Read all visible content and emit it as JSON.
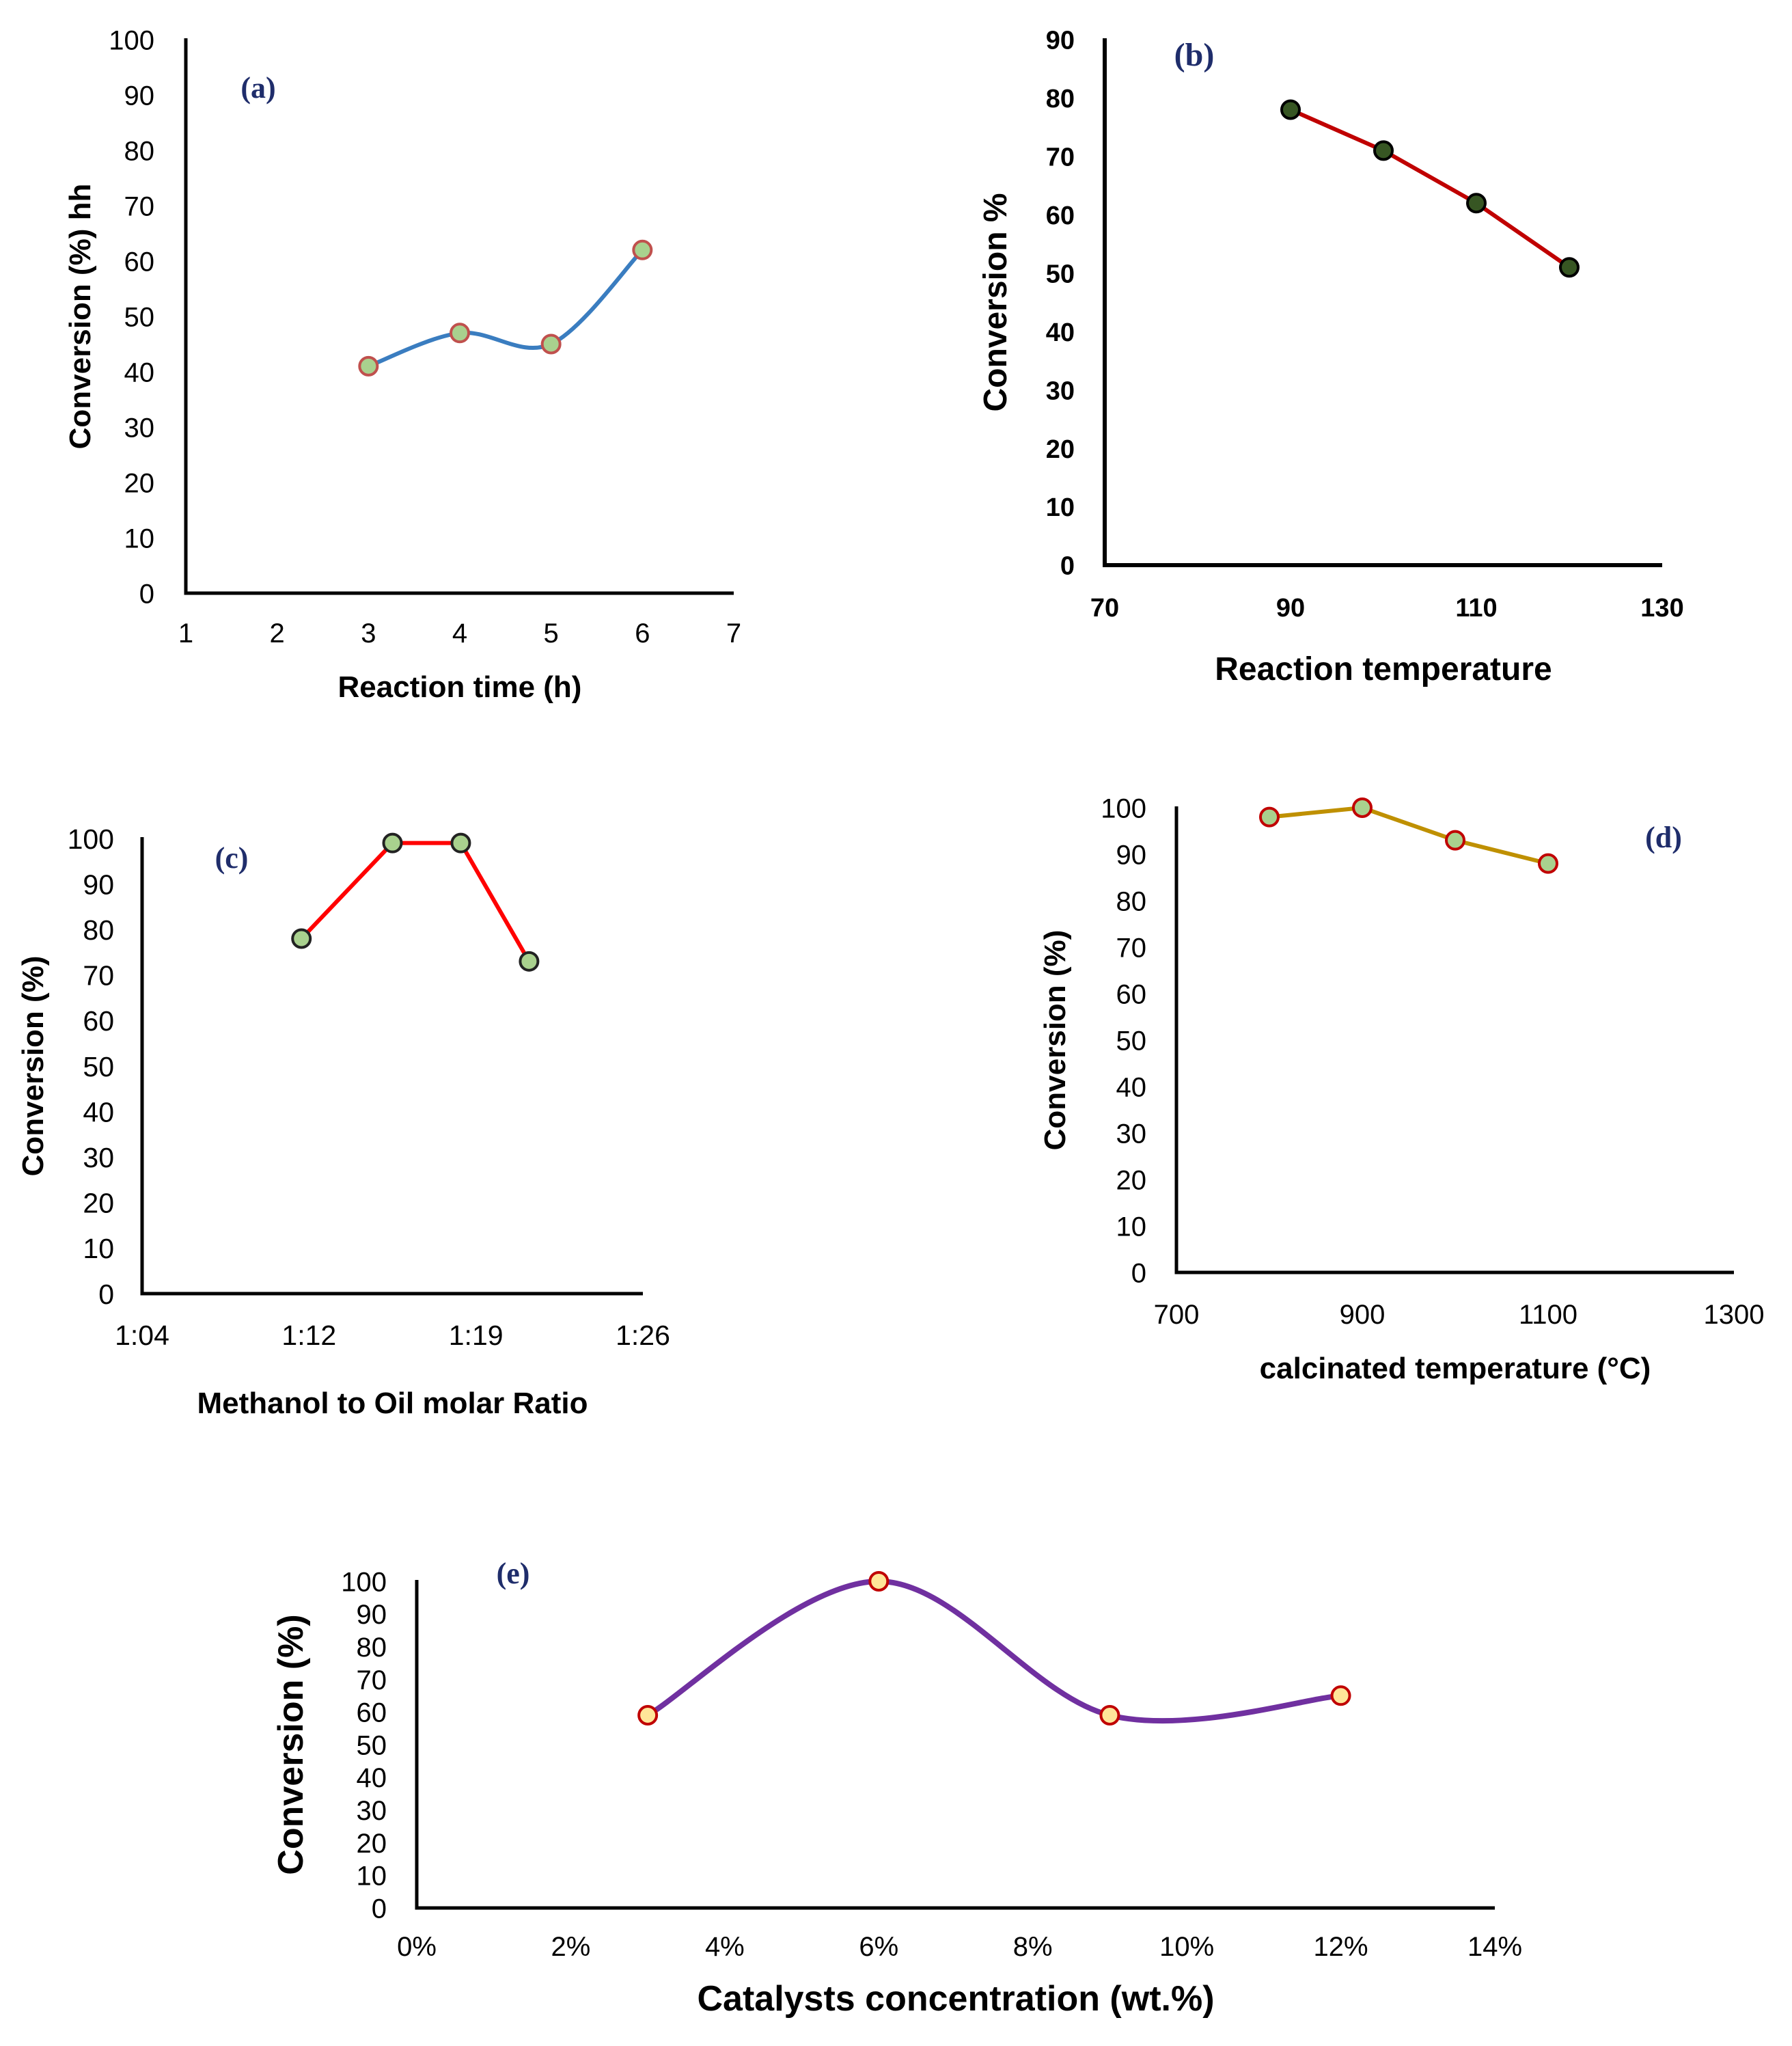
{
  "colors": {
    "axis": "#000000",
    "label_blue": "#1f2d6b"
  },
  "chart_data": [
    {
      "id": "a",
      "type": "line",
      "panel_label": "(a)",
      "smooth": true,
      "line_color": "#3a7dc0",
      "marker_fill": "#a9d18e",
      "marker_stroke": "#c0504d",
      "title": "",
      "xlabel": "Reaction time (h)",
      "ylabel": "Conversion (%) hh",
      "x": [
        3,
        4,
        5,
        6
      ],
      "values": [
        41,
        47,
        45,
        62
      ],
      "xlim": [
        1,
        7
      ],
      "ylim": [
        0,
        100
      ],
      "xticks": [
        "1",
        "2",
        "3",
        "4",
        "5",
        "6",
        "7"
      ],
      "yticks": [
        "0",
        "10",
        "20",
        "30",
        "40",
        "50",
        "60",
        "70",
        "80",
        "90",
        "100"
      ],
      "bold_ticks": false
    },
    {
      "id": "b",
      "type": "line",
      "panel_label": "(b)",
      "smooth": false,
      "line_color": "#c00000",
      "marker_fill": "#375623",
      "marker_stroke": "#000000",
      "title": "",
      "xlabel": "Reaction temperature",
      "ylabel": "Conversion %",
      "x": [
        90,
        100,
        110,
        120
      ],
      "values": [
        78,
        71,
        62,
        51
      ],
      "xlim": [
        70,
        130
      ],
      "ylim": [
        0,
        90
      ],
      "xticks": [
        "70",
        "90",
        "110",
        "130"
      ],
      "yticks": [
        "0",
        "10",
        "20",
        "30",
        "40",
        "50",
        "60",
        "70",
        "80",
        "90"
      ],
      "bold_ticks": true
    },
    {
      "id": "c",
      "type": "line",
      "panel_label": "(c)",
      "smooth": false,
      "line_color": "#ff0000",
      "marker_fill": "#a9d18e",
      "marker_stroke": "#222222",
      "title": "",
      "xlabel": "Methanol to Oil molar Ratio",
      "ylabel": "Conversion (%)",
      "x": [
        11,
        15,
        18,
        21
      ],
      "values": [
        78,
        99,
        99,
        73
      ],
      "xlim": [
        4,
        26
      ],
      "ylim": [
        0,
        100
      ],
      "xticks": [
        "1:04",
        "1:12",
        "1:19",
        "1:26"
      ],
      "yticks": [
        "0",
        "10",
        "20",
        "30",
        "40",
        "50",
        "60",
        "70",
        "80",
        "90",
        "100"
      ],
      "bold_ticks": false
    },
    {
      "id": "d",
      "type": "line",
      "panel_label": "(d)",
      "smooth": false,
      "line_color": "#bf9000",
      "marker_fill": "#a9d18e",
      "marker_stroke": "#c00000",
      "title": "",
      "xlabel": "calcinated temperature (°C)",
      "ylabel": "Conversion (%)",
      "x": [
        800,
        900,
        1000,
        1100
      ],
      "values": [
        98,
        100,
        93,
        88
      ],
      "xlim": [
        700,
        1300
      ],
      "ylim": [
        0,
        100
      ],
      "xticks": [
        "700",
        "900",
        "1100",
        "1300"
      ],
      "yticks": [
        "0",
        "10",
        "20",
        "30",
        "40",
        "50",
        "60",
        "70",
        "80",
        "90",
        "100"
      ],
      "bold_ticks": false
    },
    {
      "id": "e",
      "type": "line",
      "panel_label": "(e)",
      "smooth": true,
      "line_color": "#7030a0",
      "marker_fill": "#ffe699",
      "marker_stroke": "#c00000",
      "title": "",
      "xlabel": "Catalysts concentration  (wt.%)",
      "ylabel": "Conversion (%)",
      "x": [
        3,
        6,
        9,
        12
      ],
      "values": [
        59,
        100,
        59,
        65
      ],
      "xlim": [
        0,
        14
      ],
      "ylim": [
        0,
        100
      ],
      "xticks": [
        "0%",
        "2%",
        "4%",
        "6%",
        "8%",
        "10%",
        "12%",
        "14%"
      ],
      "yticks": [
        "0",
        "10",
        "20",
        "30",
        "40",
        "50",
        "60",
        "70",
        "80",
        "90",
        "100"
      ],
      "bold_ticks": false
    }
  ]
}
